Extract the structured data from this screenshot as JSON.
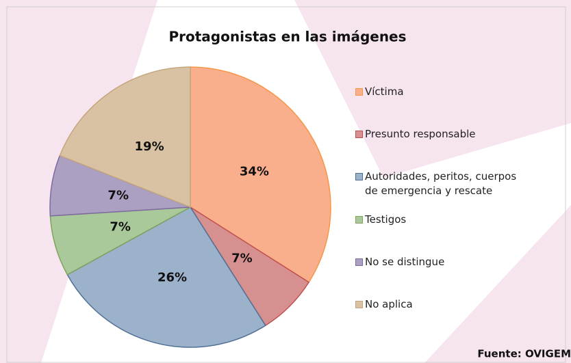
{
  "chart_data": {
    "type": "pie",
    "title": "Protagonistas en las imágenes",
    "categories": [
      "Víctima",
      "Presunto responsable",
      "Autoridades, peritos, cuerpos de emergencia y rescate",
      "Testigos",
      "No se distingue",
      "No aplica"
    ],
    "values": [
      34,
      7,
      26,
      7,
      7,
      19
    ],
    "value_labels": [
      "34%",
      "7%",
      "26%",
      "7%",
      "7%",
      "19%"
    ],
    "colors": [
      "#f9ae8c",
      "#d79090",
      "#9cb1ca",
      "#aac99a",
      "#ab9fc2",
      "#d9c2a3"
    ],
    "edge_colors": [
      "#f79646",
      "#c0504d",
      "#4f6f95",
      "#7ea35a",
      "#7e6a9f",
      "#c4a67e"
    ],
    "legend": "right",
    "source": "Fuente: OVIGEM"
  }
}
